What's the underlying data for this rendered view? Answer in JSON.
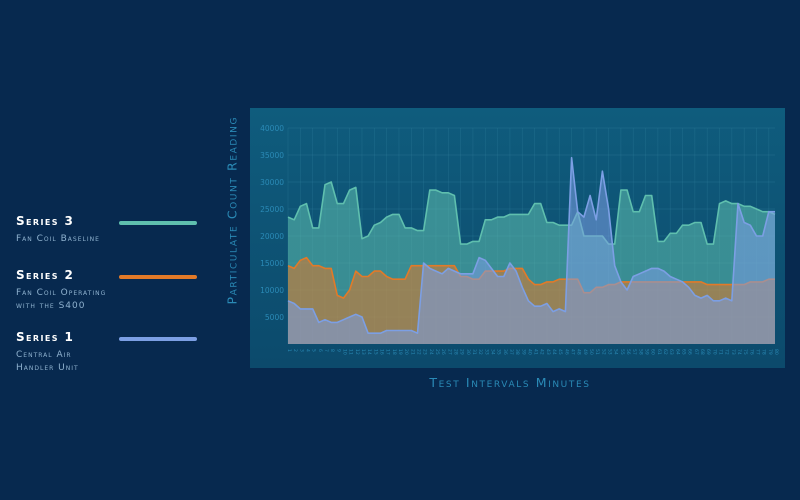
{
  "legend": {
    "series3": {
      "title": "Series 3",
      "desc": "Fan Coil Baseline",
      "color": "#5fbfae"
    },
    "series2": {
      "title": "Series 2",
      "desc_line1": "Fan Coil Operating",
      "desc_line2": "with the S400",
      "color": "#e27a28"
    },
    "series1": {
      "title": "Series 1",
      "desc_line1": "Central Air",
      "desc_line2": "Handler Unit",
      "color": "#7c9fe4"
    }
  },
  "chart_data": {
    "type": "area",
    "ylabel": "Particulate Count Reading",
    "xlabel": "Test Intervals Minutes",
    "ylim": [
      0,
      40000
    ],
    "y_ticks": [
      5000,
      10000,
      15000,
      20000,
      25000,
      30000,
      35000,
      40000
    ],
    "grid": true,
    "x": [
      1,
      2,
      3,
      4,
      5,
      6,
      7,
      8,
      9,
      10,
      11,
      12,
      13,
      14,
      15,
      16,
      17,
      18,
      19,
      20,
      21,
      22,
      23,
      24,
      25,
      26,
      27,
      28,
      29,
      30,
      31,
      32,
      33,
      34,
      35,
      36,
      37,
      38,
      39,
      40,
      41,
      42,
      43,
      44,
      45,
      46,
      47,
      48,
      49,
      50,
      51,
      52,
      53,
      54,
      55,
      56,
      57,
      58,
      59,
      60,
      61,
      62,
      63,
      64,
      65,
      66,
      67,
      68,
      69,
      70,
      71,
      72,
      73,
      74,
      75,
      76,
      77,
      78,
      79,
      80
    ],
    "series": [
      {
        "name": "Series 3",
        "values": [
          23500,
          23000,
          25500,
          26000,
          21500,
          21500,
          29500,
          30000,
          26000,
          26000,
          28500,
          29000,
          19500,
          20000,
          22000,
          22500,
          23500,
          24000,
          24000,
          21500,
          21500,
          21000,
          21000,
          28500,
          28500,
          28000,
          28000,
          27500,
          18500,
          18500,
          19000,
          19000,
          23000,
          23000,
          23500,
          23500,
          24000,
          24000,
          24000,
          24000,
          26000,
          26000,
          22500,
          22500,
          22000,
          22000,
          22000,
          24500,
          20000,
          20000,
          20000,
          20000,
          18500,
          18500,
          28500,
          28500,
          24500,
          24500,
          27500,
          27500,
          19000,
          19000,
          20500,
          20500,
          22000,
          22000,
          22500,
          22500,
          18500,
          18500,
          26000,
          26500,
          26000,
          26000,
          25500,
          25500,
          25000,
          24500,
          24500,
          24000
        ]
      },
      {
        "name": "Series 2",
        "values": [
          14500,
          14000,
          15500,
          16000,
          14500,
          14500,
          14000,
          14000,
          9000,
          8500,
          10000,
          13500,
          12500,
          12500,
          13500,
          13500,
          12500,
          12000,
          12000,
          12000,
          14500,
          14500,
          14500,
          14500,
          14500,
          14500,
          14500,
          14500,
          12500,
          12500,
          12000,
          12000,
          13500,
          13500,
          13500,
          13500,
          14000,
          14000,
          14000,
          12000,
          11000,
          11000,
          11500,
          11500,
          12000,
          12000,
          12000,
          12000,
          9500,
          9500,
          10500,
          10500,
          11000,
          11000,
          11500,
          11500,
          11500,
          11500,
          11500,
          11500,
          11500,
          11500,
          11500,
          11500,
          11500,
          11500,
          11500,
          11500,
          11000,
          11000,
          11000,
          11000,
          11000,
          11000,
          11000,
          11500,
          11500,
          11500,
          12000,
          12000
        ]
      },
      {
        "name": "Series 1",
        "values": [
          8000,
          7500,
          6500,
          6500,
          6500,
          4000,
          4500,
          4000,
          4000,
          4500,
          5000,
          5500,
          5000,
          2000,
          2000,
          2000,
          2500,
          2500,
          2500,
          2500,
          2500,
          2000,
          15000,
          14000,
          13500,
          13000,
          14000,
          13500,
          13000,
          13000,
          13000,
          16000,
          15500,
          14000,
          12500,
          12500,
          15000,
          13500,
          10500,
          8000,
          7000,
          7000,
          7500,
          6000,
          6500,
          6000,
          34500,
          24500,
          23500,
          27500,
          23000,
          32000,
          25000,
          14500,
          11500,
          10000,
          12500,
          13000,
          13500,
          14000,
          14000,
          13500,
          12500,
          12000,
          11500,
          10500,
          9000,
          8500,
          9000,
          8000,
          8000,
          8500,
          8000,
          26000,
          22500,
          22000,
          20000,
          20000,
          24500,
          24500
        ]
      }
    ]
  }
}
